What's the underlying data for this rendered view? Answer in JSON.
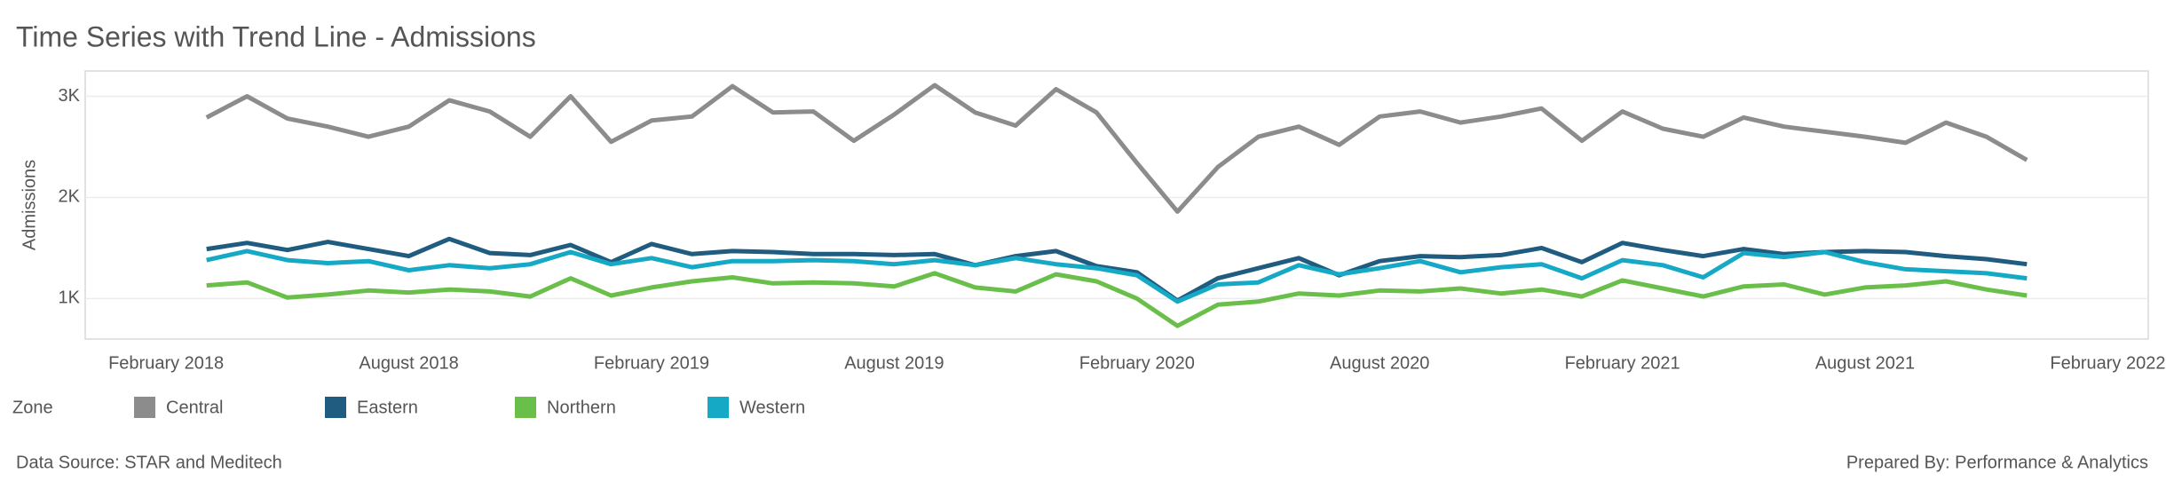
{
  "chart_data": {
    "type": "line",
    "title": "Time Series with Trend Line - Admissions",
    "y_label": "Admissions",
    "legend_title": "Zone",
    "source": "Data Source: STAR and Meditech",
    "credit": "Prepared By: Performance & Analytics",
    "x": [
      "2018-03",
      "2018-04",
      "2018-05",
      "2018-06",
      "2018-07",
      "2018-08",
      "2018-09",
      "2018-10",
      "2018-11",
      "2018-12",
      "2019-01",
      "2019-02",
      "2019-03",
      "2019-04",
      "2019-05",
      "2019-06",
      "2019-07",
      "2019-08",
      "2019-09",
      "2019-10",
      "2019-11",
      "2019-12",
      "2020-01",
      "2020-02",
      "2020-03",
      "2020-04",
      "2020-05",
      "2020-06",
      "2020-07",
      "2020-08",
      "2020-09",
      "2020-10",
      "2020-11",
      "2020-12",
      "2021-01",
      "2021-02",
      "2021-03",
      "2021-04",
      "2021-05",
      "2021-06",
      "2021-07",
      "2021-08",
      "2021-09",
      "2021-10",
      "2021-11",
      "2021-12"
    ],
    "xlim": [
      "2017-12",
      "2022-03"
    ],
    "xticks": [
      {
        "value": "2018-02",
        "label": "February 2018"
      },
      {
        "value": "2018-08",
        "label": "August 2018"
      },
      {
        "value": "2019-02",
        "label": "February 2019"
      },
      {
        "value": "2019-08",
        "label": "August 2019"
      },
      {
        "value": "2020-02",
        "label": "February 2020"
      },
      {
        "value": "2020-08",
        "label": "August 2020"
      },
      {
        "value": "2021-02",
        "label": "February 2021"
      },
      {
        "value": "2021-08",
        "label": "August 2021"
      },
      {
        "value": "2022-02",
        "label": "February 2022"
      }
    ],
    "ylim": [
      600,
      3250
    ],
    "yticks": [
      {
        "value": 1000,
        "label": "1K"
      },
      {
        "value": 2000,
        "label": "2K"
      },
      {
        "value": 3000,
        "label": "3K"
      }
    ],
    "grid": true,
    "series": [
      {
        "name": "Central",
        "color": "#8c8c8c",
        "values": [
          2790,
          3000,
          2780,
          2700,
          2600,
          2700,
          2960,
          2850,
          2600,
          3000,
          2550,
          2760,
          2800,
          3100,
          2840,
          2850,
          2560,
          2820,
          3110,
          2840,
          2710,
          3070,
          2840,
          2340,
          1860,
          2300,
          2600,
          2700,
          2520,
          2800,
          2850,
          2740,
          2800,
          2880,
          2560,
          2850,
          2680,
          2600,
          2790,
          2700,
          2650,
          2600,
          2540,
          2740,
          2600,
          2370
        ]
      },
      {
        "name": "Eastern",
        "color": "#1f5c80",
        "values": [
          1490,
          1550,
          1480,
          1560,
          1490,
          1420,
          1590,
          1450,
          1430,
          1530,
          1360,
          1540,
          1440,
          1470,
          1460,
          1440,
          1440,
          1430,
          1440,
          1330,
          1420,
          1470,
          1320,
          1260,
          980,
          1200,
          1300,
          1400,
          1230,
          1370,
          1420,
          1410,
          1430,
          1500,
          1360,
          1550,
          1480,
          1420,
          1490,
          1440,
          1460,
          1470,
          1460,
          1420,
          1390,
          1340
        ]
      },
      {
        "name": "Northern",
        "color": "#6abf4b",
        "values": [
          1130,
          1160,
          1010,
          1040,
          1080,
          1060,
          1090,
          1070,
          1020,
          1200,
          1030,
          1110,
          1170,
          1210,
          1150,
          1160,
          1150,
          1120,
          1250,
          1110,
          1070,
          1240,
          1170,
          1000,
          730,
          940,
          970,
          1050,
          1030,
          1080,
          1070,
          1100,
          1050,
          1090,
          1020,
          1180,
          1100,
          1020,
          1120,
          1140,
          1040,
          1110,
          1130,
          1170,
          1090,
          1030
        ]
      },
      {
        "name": "Western",
        "color": "#16a9c6",
        "values": [
          1380,
          1470,
          1380,
          1350,
          1370,
          1280,
          1330,
          1300,
          1340,
          1460,
          1340,
          1400,
          1310,
          1370,
          1370,
          1380,
          1370,
          1340,
          1380,
          1330,
          1400,
          1340,
          1300,
          1230,
          970,
          1140,
          1160,
          1330,
          1240,
          1300,
          1370,
          1260,
          1310,
          1340,
          1200,
          1380,
          1330,
          1210,
          1450,
          1410,
          1460,
          1360,
          1290,
          1270,
          1250,
          1200
        ]
      }
    ]
  }
}
